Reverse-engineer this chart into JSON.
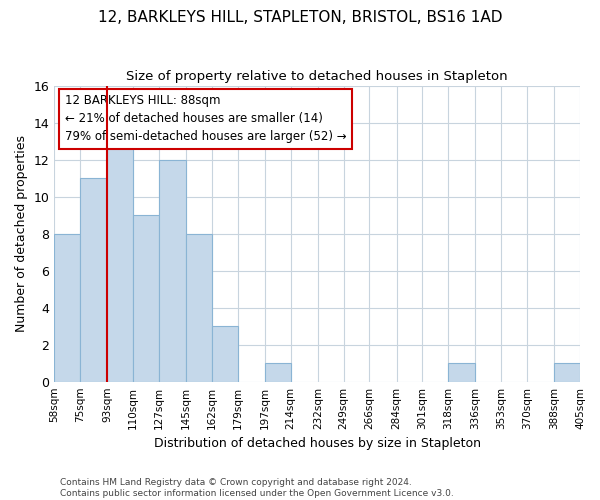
{
  "title": "12, BARKLEYS HILL, STAPLETON, BRISTOL, BS16 1AD",
  "subtitle": "Size of property relative to detached houses in Stapleton",
  "xlabel": "Distribution of detached houses by size in Stapleton",
  "ylabel": "Number of detached properties",
  "bar_color": "#c5d8ea",
  "bar_edgecolor": "#8ab4d4",
  "grid_color": "#c8d4de",
  "annotation_line_color": "#cc0000",
  "annotation_box_edgecolor": "#cc0000",
  "annotation_text_line1": "12 BARKLEYS HILL: 88sqm",
  "annotation_text_line2": "← 21% of detached houses are smaller (14)",
  "annotation_text_line3": "79% of semi-detached houses are larger (52) →",
  "footer1": "Contains HM Land Registry data © Crown copyright and database right 2024.",
  "footer2": "Contains public sector information licensed under the Open Government Licence v3.0.",
  "bins": [
    "58sqm",
    "75sqm",
    "93sqm",
    "110sqm",
    "127sqm",
    "145sqm",
    "162sqm",
    "179sqm",
    "197sqm",
    "214sqm",
    "232sqm",
    "249sqm",
    "266sqm",
    "284sqm",
    "301sqm",
    "318sqm",
    "336sqm",
    "353sqm",
    "370sqm",
    "388sqm",
    "405sqm"
  ],
  "values": [
    8,
    11,
    13,
    9,
    12,
    8,
    3,
    0,
    1,
    0,
    0,
    0,
    0,
    0,
    0,
    1,
    0,
    0,
    0,
    1
  ],
  "bin_edges_num": [
    58,
    75,
    93,
    110,
    127,
    145,
    162,
    179,
    197,
    214,
    232,
    249,
    266,
    284,
    301,
    318,
    336,
    353,
    370,
    388,
    405
  ],
  "property_line_x": 93,
  "ylim": [
    0,
    16
  ],
  "yticks": [
    0,
    2,
    4,
    6,
    8,
    10,
    12,
    14,
    16
  ]
}
